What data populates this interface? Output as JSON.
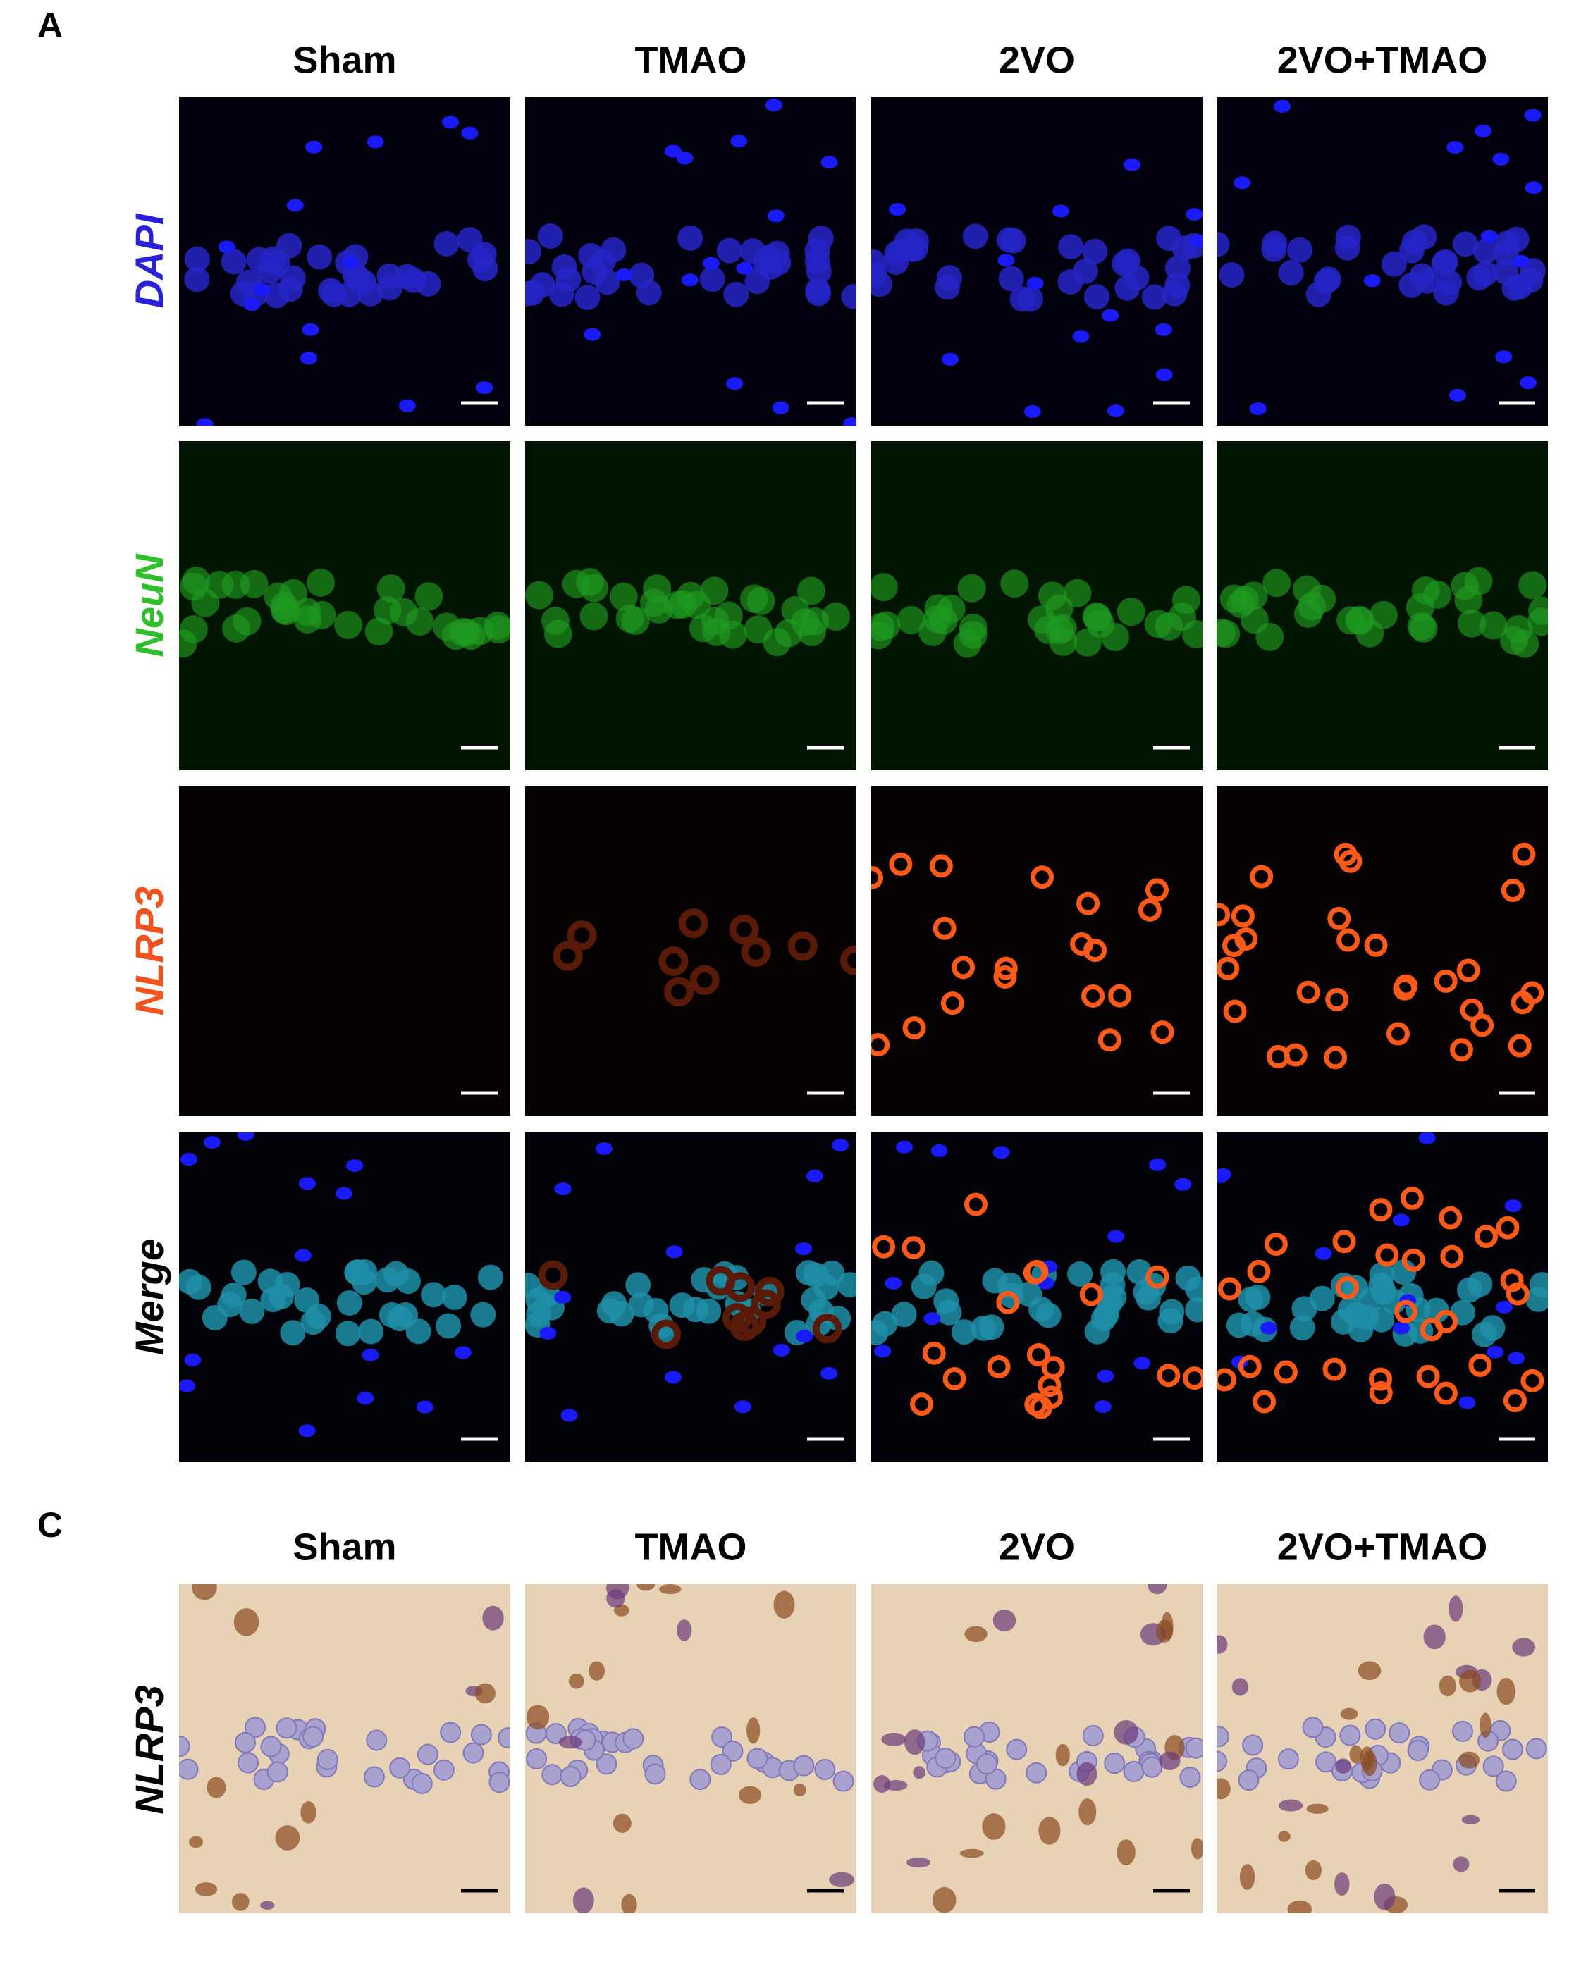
{
  "panel_a": {
    "label": "A",
    "columns": [
      "Sham",
      "TMAO",
      "2VO",
      "2VO+TMAO"
    ],
    "rows": [
      "DAPI",
      "NeuN",
      "NLRP3",
      "Merge"
    ]
  },
  "panel_c": {
    "label": "C",
    "columns": [
      "Sham",
      "TMAO",
      "2VO",
      "2VO+TMAO"
    ],
    "rows": [
      "NLRP3"
    ]
  }
}
